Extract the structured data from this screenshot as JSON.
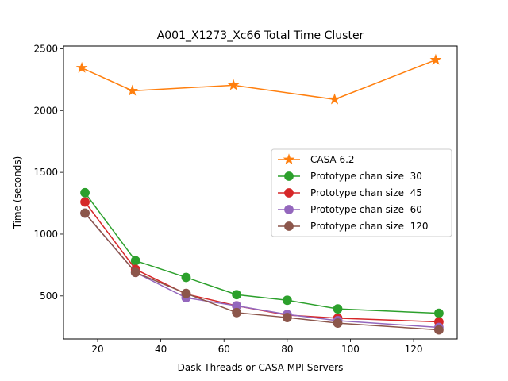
{
  "chart_data": {
    "type": "line",
    "title": "A001_X1273_Xc66 Total Time Cluster",
    "xlabel": "Dask Threads or CASA MPI Servers",
    "ylabel": "Time (seconds)",
    "xlim": [
      9.2,
      133.8
    ],
    "ylim": [
      152,
      2522
    ],
    "xticks": [
      20,
      40,
      60,
      80,
      100,
      120
    ],
    "yticks": [
      500,
      1000,
      1500,
      2000,
      2500
    ],
    "grid": false,
    "legend_position": "center right",
    "series": [
      {
        "name": "CASA 6.2",
        "color": "#ff7f0e",
        "marker": "star",
        "x": [
          15,
          31,
          63,
          95,
          127
        ],
        "y": [
          2345,
          2160,
          2205,
          2090,
          2410
        ]
      },
      {
        "name": "Prototype chan size  30",
        "color": "#2ca02c",
        "marker": "circle",
        "x": [
          16,
          32,
          48,
          64,
          80,
          96,
          128
        ],
        "y": [
          1335,
          785,
          650,
          510,
          465,
          395,
          360
        ]
      },
      {
        "name": "Prototype chan size  45",
        "color": "#d62728",
        "marker": "circle",
        "x": [
          16,
          32,
          48,
          64,
          80,
          96,
          128
        ],
        "y": [
          1260,
          715,
          515,
          420,
          345,
          320,
          290
        ]
      },
      {
        "name": "Prototype chan size  60",
        "color": "#9467bd",
        "marker": "circle",
        "x": [
          16,
          32,
          48,
          64,
          80,
          96,
          128
        ],
        "y": [
          1170,
          690,
          485,
          420,
          350,
          300,
          245
        ]
      },
      {
        "name": "Prototype chan size  120",
        "color": "#8c564b",
        "marker": "circle",
        "x": [
          16,
          32,
          48,
          64,
          80,
          96,
          128
        ],
        "y": [
          1170,
          690,
          520,
          365,
          325,
          280,
          225
        ]
      }
    ]
  }
}
